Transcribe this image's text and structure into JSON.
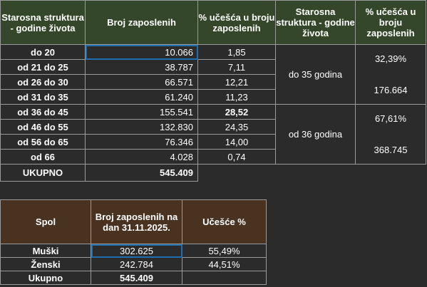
{
  "age_table": {
    "headers": {
      "age_structure": "Starosna struktura - godine života",
      "employees": "Broj zaposlenih",
      "share": "% učešća u broju zaposlenih",
      "age_structure_2": "Starosna struktura - godine života",
      "share_2": "% učešća u broju zaposlenih"
    },
    "rows": [
      {
        "age": "do 20",
        "count": "10.066",
        "pct": "1,85"
      },
      {
        "age": "od 21 do 25",
        "count": "38.787",
        "pct": "7,11"
      },
      {
        "age": "od 26 do 30",
        "count": "66.571",
        "pct": "12,21"
      },
      {
        "age": "od 31 do 35",
        "count": "61.240",
        "pct": "11,23"
      },
      {
        "age": "od 36 do 45",
        "count": "155.541",
        "pct": "28,52"
      },
      {
        "age": "od 46 do 55",
        "count": "132.830",
        "pct": "24,35"
      },
      {
        "age": "od 56 do 65",
        "count": "76.346",
        "pct": "14,00"
      },
      {
        "age": "od 66",
        "count": "4.028",
        "pct": "0,74"
      }
    ],
    "groups": [
      {
        "label": "do 35 godina",
        "pct": "32,39%",
        "count": "176.664"
      },
      {
        "label": "od 36 godina",
        "pct": "67,61%",
        "count": "368.745"
      }
    ],
    "total": {
      "label": "UKUPNO",
      "count": "545.409"
    }
  },
  "gender_table": {
    "headers": {
      "gender": "Spol",
      "employees": "Broj zaposlenih na dan 31.11.2025.",
      "share": "Učešće %"
    },
    "rows": [
      {
        "gender": "Muški",
        "count": "302.625",
        "pct": "55,49%"
      },
      {
        "gender": "Ženski",
        "count": "242.784",
        "pct": "44,51%"
      }
    ],
    "total": {
      "label": "Ukupno",
      "count": "545.409"
    }
  },
  "colors": {
    "background": "#2b2b2b",
    "age_header": "#35472a",
    "gender_header": "#4a3220",
    "selection": "#1f6fb0"
  }
}
